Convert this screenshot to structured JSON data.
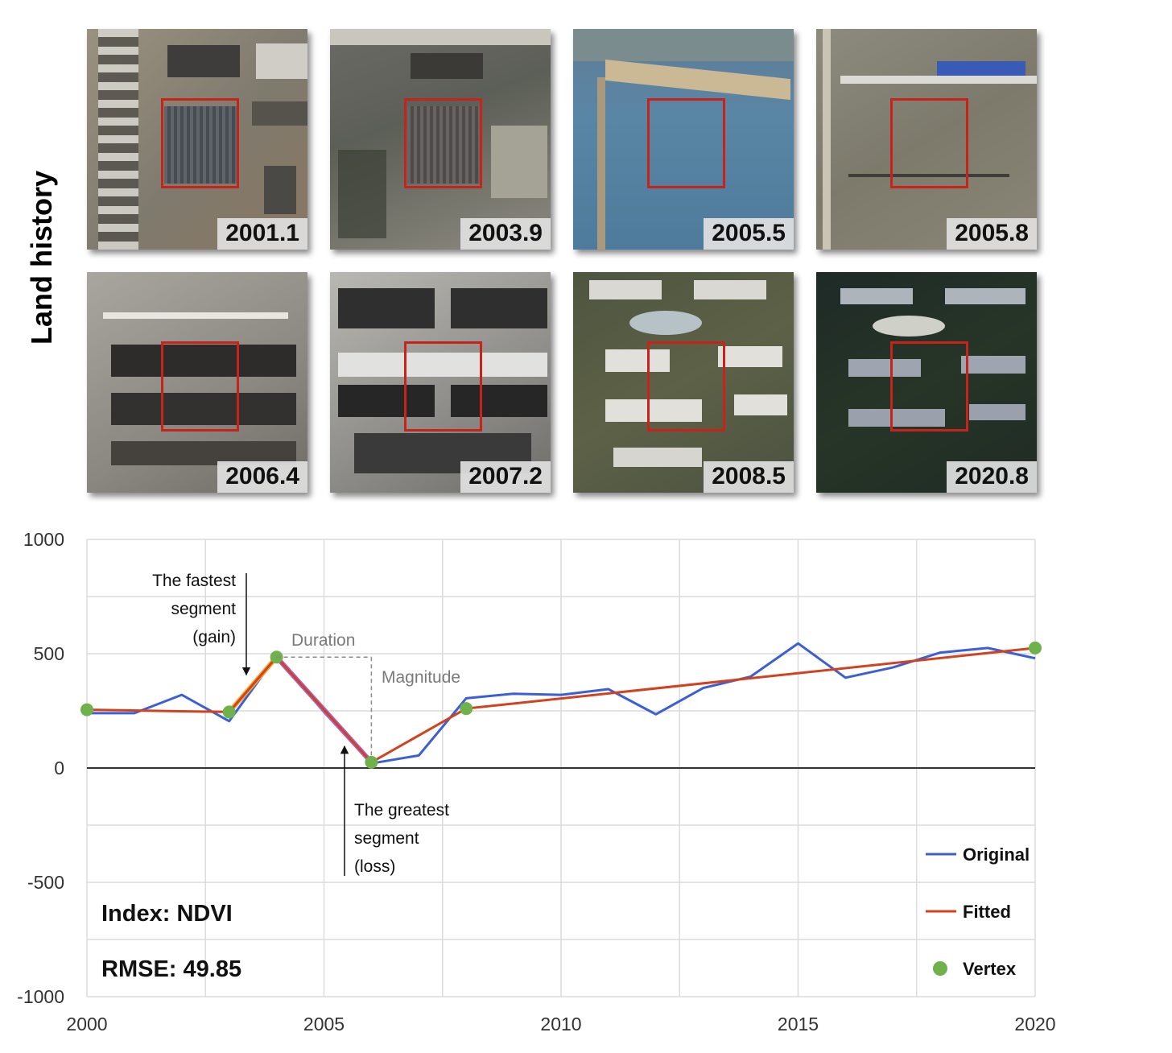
{
  "row_label": "Land history",
  "tiles": [
    {
      "date": "2001.1"
    },
    {
      "date": "2003.9"
    },
    {
      "date": "2005.5"
    },
    {
      "date": "2005.8"
    },
    {
      "date": "2006.4"
    },
    {
      "date": "2007.2"
    },
    {
      "date": "2008.5"
    },
    {
      "date": "2020.8"
    }
  ],
  "colors": {
    "original": "#3d5fd6",
    "fitted": "#d2421f",
    "vertex": "#6fb14a",
    "fastest_segment": "#f0ad2f",
    "greatest_segment": "#a462d4",
    "roi_box": "#c8231b"
  },
  "chart_data": {
    "type": "line",
    "xlim": [
      2000,
      2020
    ],
    "ylim": [
      -1000,
      1000
    ],
    "x_ticks": [
      "2000",
      "2005",
      "2010",
      "2015",
      "2020"
    ],
    "y_ticks": [
      "1000",
      "500",
      "0",
      "-500",
      "-1000"
    ],
    "grid": true,
    "series": [
      {
        "name": "Original",
        "x": [
          2000,
          2001,
          2002,
          2003,
          2004,
          2005,
          2006,
          2007,
          2008,
          2009,
          2010,
          2011,
          2012,
          2013,
          2014,
          2015,
          2016,
          2017,
          2018,
          2019,
          2020
        ],
        "y": [
          240,
          240,
          320,
          205,
          490,
          245,
          20,
          55,
          305,
          325,
          320,
          345,
          235,
          350,
          400,
          545,
          395,
          440,
          505,
          525,
          480
        ]
      },
      {
        "name": "Fitted",
        "x": [
          2000,
          2003,
          2004,
          2006,
          2008,
          2020
        ],
        "y": [
          255,
          245,
          485,
          25,
          260,
          525
        ]
      },
      {
        "name": "Vertex",
        "x": [
          2000,
          2003,
          2004,
          2006,
          2008,
          2020
        ],
        "y": [
          255,
          245,
          485,
          25,
          260,
          525
        ]
      }
    ],
    "highlights": {
      "fastest": {
        "x": [
          2003,
          2004
        ],
        "y": [
          245,
          485
        ]
      },
      "greatest": {
        "x": [
          2004,
          2006
        ],
        "y": [
          485,
          25
        ]
      }
    },
    "annotations": {
      "fastest_lines": [
        "The fastest",
        "segment",
        "(gain)"
      ],
      "duration": "Duration",
      "magnitude": "Magnitude",
      "greatest_lines": [
        "The greatest",
        "segment",
        "(loss)"
      ],
      "index": "Index: NDVI",
      "rmse": "RMSE: 49.85"
    },
    "legend": {
      "placement": "bottom-right",
      "entries": [
        "Original",
        "Fitted",
        "Vertex"
      ]
    }
  }
}
